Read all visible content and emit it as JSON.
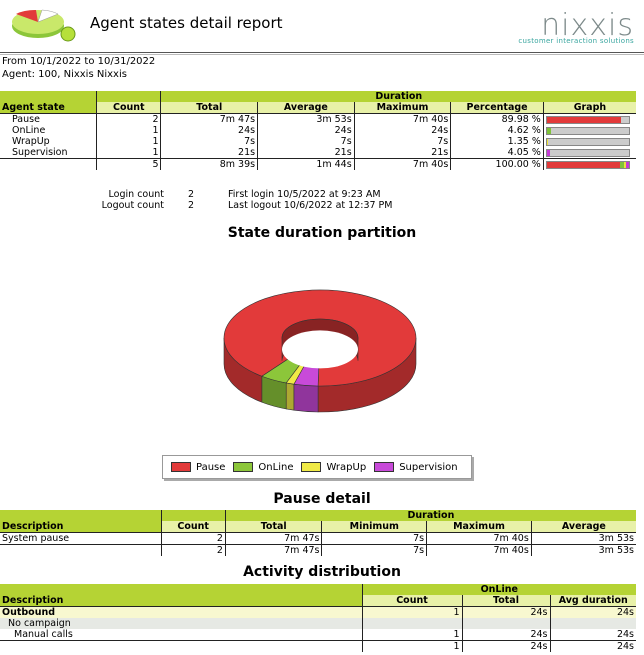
{
  "header": {
    "title": "Agent states detail report",
    "logo_text": "nixxis",
    "logo_sub": "customer interaction solutions"
  },
  "meta": {
    "period": "From  10/1/2022 to 10/31/2022",
    "agent": "Agent: 100, Nixxis Nixxis"
  },
  "states_table": {
    "group_header": "Duration",
    "headers": {
      "state": "Agent state",
      "count": "Count",
      "total": "Total",
      "average": "Average",
      "maximum": "Maximum",
      "percentage": "Percentage",
      "graph": "Graph"
    },
    "rows": [
      {
        "state": "Pause",
        "count": "2",
        "total": "7m 47s",
        "average": "3m 53s",
        "maximum": "7m 40s",
        "percentage": "89.98 %",
        "pct": 0.8998,
        "color": "#e23a3a"
      },
      {
        "state": "OnLine",
        "count": "1",
        "total": "24s",
        "average": "24s",
        "maximum": "24s",
        "percentage": "4.62 %",
        "pct": 0.0462,
        "color": "#7fc33a"
      },
      {
        "state": "WrapUp",
        "count": "1",
        "total": "7s",
        "average": "7s",
        "maximum": "7s",
        "percentage": "1.35 %",
        "pct": 0.0135,
        "color": "#e9e23a"
      },
      {
        "state": "Supervision",
        "count": "1",
        "total": "21s",
        "average": "21s",
        "maximum": "21s",
        "percentage": "4.05 %",
        "pct": 0.0405,
        "color": "#c53ad6"
      }
    ],
    "total": {
      "count": "5",
      "total": "8m 39s",
      "average": "1m 44s",
      "maximum": "7m 40s",
      "percentage": "100.00 %"
    }
  },
  "login": {
    "login_label": "Login count",
    "login_count": "2",
    "first_login": "First login 10/5/2022 at 9:23 AM",
    "logout_label": "Logout count",
    "logout_count": "2",
    "last_logout": "Last logout 10/6/2022 at 12:37 PM"
  },
  "chart_data": {
    "type": "pie",
    "title": "State duration partition",
    "categories": [
      "Pause",
      "OnLine",
      "WrapUp",
      "Supervision"
    ],
    "values": [
      89.98,
      4.62,
      1.35,
      4.05
    ],
    "colors": [
      "#e23a3a",
      "#8cc63a",
      "#f0ea46",
      "#c84ad9"
    ],
    "legend": "bottom",
    "donut": true
  },
  "pause_detail": {
    "title": "Pause detail",
    "group_header": "Duration",
    "headers": {
      "description": "Description",
      "count": "Count",
      "total": "Total",
      "minimum": "Minimum",
      "maximum": "Maximum",
      "average": "Average"
    },
    "rows": [
      {
        "description": "System pause",
        "count": "2",
        "total": "7m 47s",
        "minimum": "7s",
        "maximum": "7m 40s",
        "average": "3m 53s"
      }
    ],
    "total": {
      "count": "2",
      "total": "7m 47s",
      "minimum": "7s",
      "maximum": "7m 40s",
      "average": "3m 53s"
    }
  },
  "activity": {
    "title": "Activity distribution",
    "group_header": "OnLine",
    "headers": {
      "description": "Description",
      "count": "Count",
      "total": "Total",
      "avg": "Avg duration"
    },
    "outbound": {
      "label": "Outbound",
      "count": "1",
      "total": "24s",
      "avg": "24s"
    },
    "campaign": {
      "label": "No campaign"
    },
    "manual": {
      "label": "Manual calls",
      "count": "1",
      "total": "24s",
      "avg": "24s"
    },
    "total": {
      "count": "1",
      "total": "24s",
      "avg": "24s"
    }
  }
}
